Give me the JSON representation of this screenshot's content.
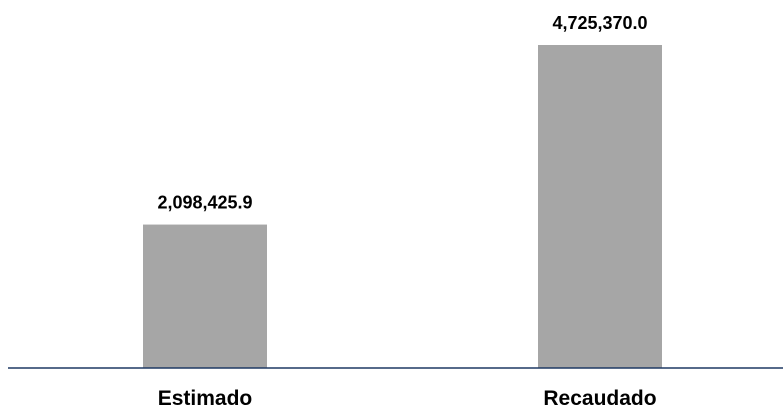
{
  "chart_data": {
    "type": "bar",
    "categories": [
      "Estimado",
      "Recaudado"
    ],
    "values": [
      2098425.9,
      4725370.0
    ],
    "value_labels": [
      "2,098,425.9",
      "4,725,370.0"
    ],
    "color": "#a6a6a6"
  }
}
